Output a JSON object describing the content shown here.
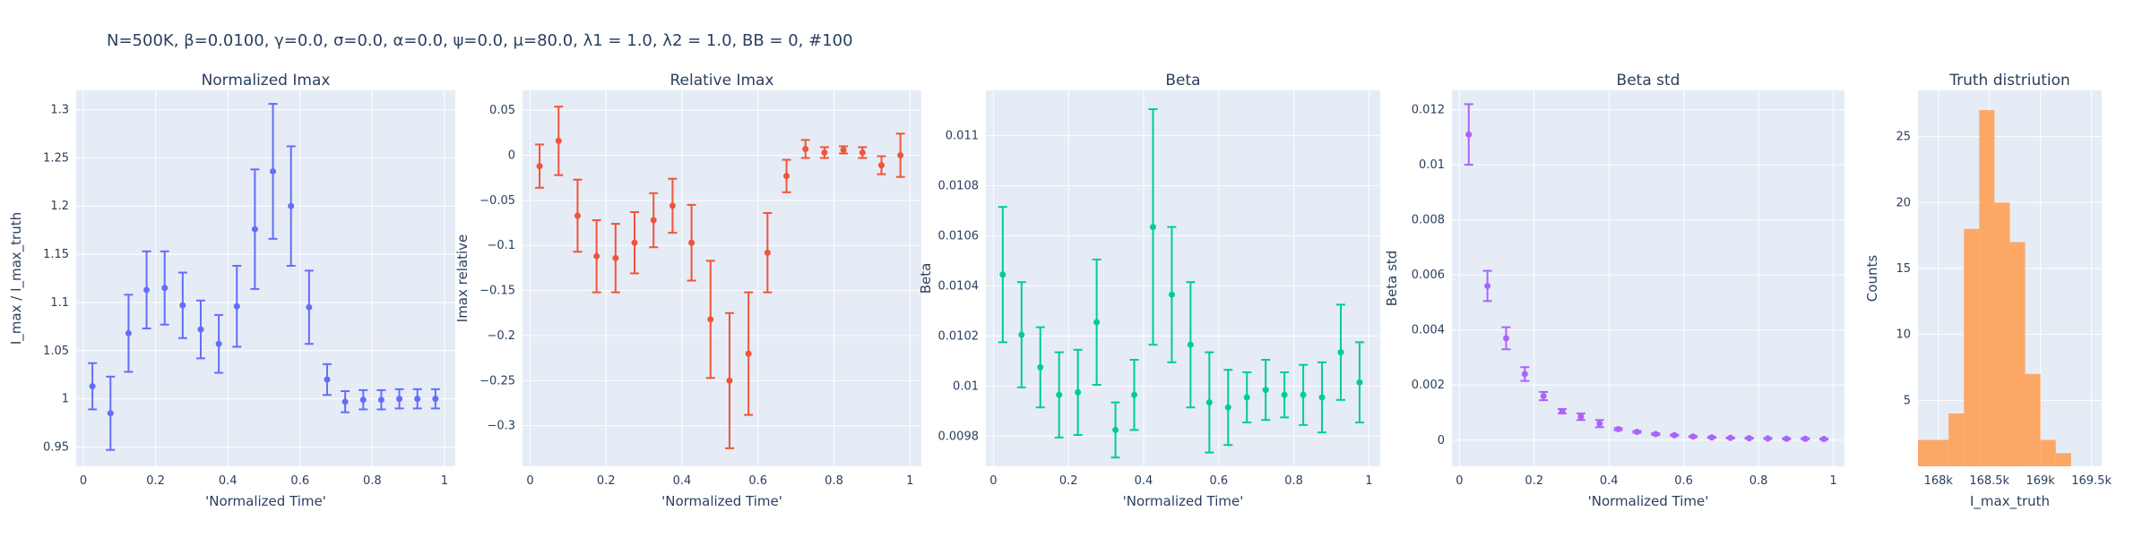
{
  "title": "N=500K, β=0.0100, γ=0.0, σ=0.0,  α=0.0, ψ=0.0, μ=80.0, λ1 = 1.0, λ2 = 1.0, BB = 0, #100",
  "colors": {
    "plot_bg": "#e5ecf6",
    "grid": "#ffffff",
    "text": "#2a3f5f"
  },
  "chart_data": [
    {
      "type": "scatter",
      "subtitle": "Normalized Imax",
      "xlabel": "'Normalized Time'",
      "ylabel": "I_max / I_max_truth",
      "color": "#636efa",
      "xlim": [
        -0.02,
        1.03
      ],
      "ylim": [
        0.93,
        1.32
      ],
      "xticks": [
        0,
        0.2,
        0.4,
        0.6,
        0.8,
        1
      ],
      "xtick_labels": [
        "0",
        "0.2",
        "0.4",
        "0.6",
        "0.8",
        "1"
      ],
      "yticks": [
        0.95,
        1,
        1.05,
        1.1,
        1.15,
        1.2,
        1.25,
        1.3
      ],
      "ytick_labels": [
        "0.95",
        "1",
        "1.05",
        "1.1",
        "1.15",
        "1.2",
        "1.25",
        "1.3"
      ],
      "x": [
        0.025,
        0.075,
        0.125,
        0.175,
        0.225,
        0.275,
        0.325,
        0.375,
        0.425,
        0.475,
        0.525,
        0.575,
        0.625,
        0.675,
        0.725,
        0.775,
        0.825,
        0.875,
        0.925,
        0.975
      ],
      "y": [
        1.013,
        0.985,
        1.068,
        1.113,
        1.115,
        1.097,
        1.072,
        1.057,
        1.096,
        1.176,
        1.236,
        1.2,
        1.095,
        1.02,
        0.997,
        0.999,
        0.999,
        1.0,
        1.0,
        1.0
      ],
      "err": [
        0.024,
        0.038,
        0.04,
        0.04,
        0.038,
        0.034,
        0.03,
        0.03,
        0.042,
        0.062,
        0.07,
        0.062,
        0.038,
        0.016,
        0.011,
        0.01,
        0.01,
        0.01,
        0.01,
        0.01
      ]
    },
    {
      "type": "scatter",
      "subtitle": "Relative Imax",
      "xlabel": "'Normalized Time'",
      "ylabel": "Imax relative",
      "color": "#ef553b",
      "xlim": [
        -0.02,
        1.03
      ],
      "ylim": [
        -0.345,
        0.072
      ],
      "xticks": [
        0,
        0.2,
        0.4,
        0.6,
        0.8,
        1
      ],
      "xtick_labels": [
        "0",
        "0.2",
        "0.4",
        "0.6",
        "0.8",
        "1"
      ],
      "yticks": [
        0.05,
        0,
        -0.05,
        -0.1,
        -0.15,
        -0.2,
        -0.25,
        -0.3
      ],
      "ytick_labels": [
        "0.05",
        "0",
        "−0.05",
        "−0.1",
        "−0.15",
        "−0.2",
        "−0.25",
        "−0.3"
      ],
      "x": [
        0.025,
        0.075,
        0.125,
        0.175,
        0.225,
        0.275,
        0.325,
        0.375,
        0.425,
        0.475,
        0.525,
        0.575,
        0.625,
        0.675,
        0.725,
        0.775,
        0.825,
        0.875,
        0.925,
        0.975
      ],
      "y": [
        -0.012,
        0.016,
        -0.067,
        -0.112,
        -0.114,
        -0.097,
        -0.072,
        -0.056,
        -0.097,
        -0.182,
        -0.25,
        -0.22,
        -0.108,
        -0.023,
        0.007,
        0.003,
        0.006,
        0.003,
        -0.011,
        0.0
      ],
      "err": [
        0.024,
        0.038,
        0.04,
        0.04,
        0.038,
        0.034,
        0.03,
        0.03,
        0.042,
        0.065,
        0.075,
        0.068,
        0.044,
        0.018,
        0.01,
        0.006,
        0.004,
        0.006,
        0.01,
        0.024
      ]
    },
    {
      "type": "scatter",
      "subtitle": "Beta",
      "xlabel": "'Normalized Time'",
      "ylabel": "Beta",
      "color": "#00cc96",
      "xlim": [
        -0.02,
        1.03
      ],
      "ylim": [
        0.00968,
        0.01118
      ],
      "xticks": [
        0,
        0.2,
        0.4,
        0.6,
        0.8,
        1
      ],
      "xtick_labels": [
        "0",
        "0.2",
        "0.4",
        "0.6",
        "0.8",
        "1"
      ],
      "yticks": [
        0.0098,
        0.01,
        0.0102,
        0.0104,
        0.0106,
        0.0108,
        0.011
      ],
      "ytick_labels": [
        "0.0098",
        "0.01",
        "0.0102",
        "0.0104",
        "0.0106",
        "0.0108",
        "0.011"
      ],
      "x": [
        0.025,
        0.075,
        0.125,
        0.175,
        0.225,
        0.275,
        0.325,
        0.375,
        0.425,
        0.475,
        0.525,
        0.575,
        0.625,
        0.675,
        0.725,
        0.775,
        0.825,
        0.875,
        0.925,
        0.975
      ],
      "y": [
        0.010445,
        0.010205,
        0.010075,
        0.009965,
        0.009975,
        0.010255,
        0.009825,
        0.009965,
        0.010635,
        0.010365,
        0.010165,
        0.009935,
        0.009915,
        0.009955,
        0.009985,
        0.009965,
        0.009965,
        0.009955,
        0.010135,
        0.010015
      ],
      "err": [
        0.00027,
        0.00021,
        0.00016,
        0.00017,
        0.00017,
        0.00025,
        0.00011,
        0.00014,
        0.00047,
        0.00027,
        0.00025,
        0.0002,
        0.00015,
        0.0001,
        0.00012,
        9e-05,
        0.00012,
        0.00014,
        0.00019,
        0.00016
      ]
    },
    {
      "type": "scatter",
      "subtitle": "Beta std",
      "xlabel": "'Normalized Time'",
      "ylabel": "Beta std",
      "color": "#ab63fa",
      "xlim": [
        -0.02,
        1.03
      ],
      "ylim": [
        -0.00095,
        0.0127
      ],
      "xticks": [
        0,
        0.2,
        0.4,
        0.6,
        0.8,
        1
      ],
      "xtick_labels": [
        "0",
        "0.2",
        "0.4",
        "0.6",
        "0.8",
        "1"
      ],
      "yticks": [
        0,
        0.002,
        0.004,
        0.006,
        0.008,
        0.01,
        0.012
      ],
      "ytick_labels": [
        "0",
        "0.002",
        "0.004",
        "0.006",
        "0.008",
        "0.01",
        "0.012"
      ],
      "x": [
        0.025,
        0.075,
        0.125,
        0.175,
        0.225,
        0.275,
        0.325,
        0.375,
        0.425,
        0.475,
        0.525,
        0.575,
        0.625,
        0.675,
        0.725,
        0.775,
        0.825,
        0.875,
        0.925,
        0.975
      ],
      "y": [
        0.0111,
        0.0056,
        0.0037,
        0.0024,
        0.0016,
        0.00105,
        0.00085,
        0.0006,
        0.0004,
        0.0003,
        0.00022,
        0.00018,
        0.00013,
        0.0001,
        8e-05,
        7e-05,
        6e-05,
        5e-05,
        5e-05,
        4e-05
      ],
      "err": [
        0.0011,
        0.00055,
        0.0004,
        0.00025,
        0.00015,
        8e-05,
        0.00012,
        0.00013,
        4e-05,
        3e-05,
        3e-05,
        2e-05,
        2e-05,
        2e-05,
        2e-05,
        2e-05,
        2e-05,
        2e-05,
        2e-05,
        2e-05
      ]
    },
    {
      "type": "bar",
      "subtitle": "Truth distriution",
      "xlabel": "I_max_truth",
      "ylabel": "Counts",
      "color": "#ffa15a",
      "xlim": [
        167800,
        169600
      ],
      "ylim": [
        0,
        28.5
      ],
      "xticks": [
        168000,
        168500,
        169000,
        169500
      ],
      "xtick_labels": [
        "168k",
        "168.5k",
        "169k",
        "169.5k"
      ],
      "yticks": [
        5,
        10,
        15,
        20,
        25
      ],
      "ytick_labels": [
        "5",
        "10",
        "15",
        "20",
        "25"
      ],
      "bin_edges": [
        167800,
        167950,
        168100,
        168250,
        168400,
        168550,
        168700,
        168850,
        169000,
        169150,
        169300,
        169450,
        169600
      ],
      "counts": [
        2,
        2,
        4,
        18,
        27,
        20,
        17,
        7,
        2,
        1,
        0,
        0
      ]
    }
  ]
}
